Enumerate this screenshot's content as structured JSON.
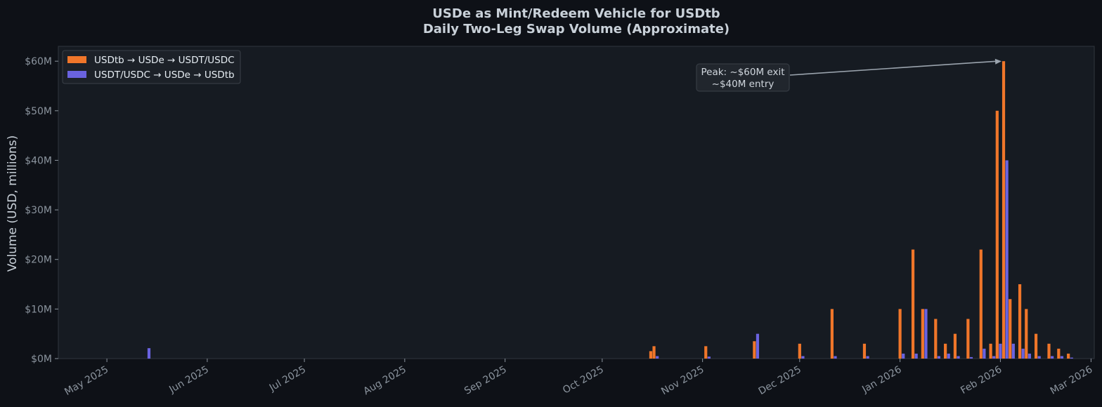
{
  "chart_data": {
    "type": "bar",
    "title": "USDe as Mint/Redeem Vehicle for USDtb",
    "subtitle": "Daily Two-Leg Swap Volume (Approximate)",
    "ylabel": "Volume (USD, millions)",
    "xlabel": "",
    "ylim": [
      0,
      63
    ],
    "xlim": [
      "2025-04-16",
      "2026-03-02"
    ],
    "yticks": [
      0,
      10,
      20,
      30,
      40,
      50,
      60
    ],
    "ytick_labels": [
      "$0M",
      "$10M",
      "$20M",
      "$30M",
      "$40M",
      "$50M",
      "$60M"
    ],
    "xticks": [
      {
        "date": "2025-05-01",
        "label": "May 2025"
      },
      {
        "date": "2025-06-01",
        "label": "Jun 2025"
      },
      {
        "date": "2025-07-01",
        "label": "Jul 2025"
      },
      {
        "date": "2025-08-01",
        "label": "Aug 2025"
      },
      {
        "date": "2025-09-01",
        "label": "Sep 2025"
      },
      {
        "date": "2025-10-01",
        "label": "Oct 2025"
      },
      {
        "date": "2025-11-01",
        "label": "Nov 2025"
      },
      {
        "date": "2025-12-01",
        "label": "Dec 2025"
      },
      {
        "date": "2026-01-01",
        "label": "Jan 2026"
      },
      {
        "date": "2026-02-01",
        "label": "Feb 2026"
      },
      {
        "date": "2026-03-01",
        "label": "Mar 2026"
      }
    ],
    "legend_position": "top-left",
    "grid": false,
    "series": [
      {
        "name": "USDtb → USDe → USDT/USDC",
        "color": "#f0762a",
        "points": [
          [
            "2025-10-16",
            1.5
          ],
          [
            "2025-10-17",
            2.5
          ],
          [
            "2025-11-02",
            2.5
          ],
          [
            "2025-11-17",
            3.5
          ],
          [
            "2025-12-01",
            3.0
          ],
          [
            "2025-12-11",
            10.0
          ],
          [
            "2025-12-21",
            3.0
          ],
          [
            "2026-01-01",
            10.0
          ],
          [
            "2026-01-05",
            22.0
          ],
          [
            "2026-01-08",
            10.0
          ],
          [
            "2026-01-12",
            8.0
          ],
          [
            "2026-01-15",
            3.0
          ],
          [
            "2026-01-18",
            5.0
          ],
          [
            "2026-01-22",
            8.0
          ],
          [
            "2026-01-26",
            22.0
          ],
          [
            "2026-01-29",
            3.0
          ],
          [
            "2026-01-31",
            50.0
          ],
          [
            "2026-02-02",
            60.0
          ],
          [
            "2026-02-04",
            12.0
          ],
          [
            "2026-02-07",
            15.0
          ],
          [
            "2026-02-09",
            10.0
          ],
          [
            "2026-02-12",
            5.0
          ],
          [
            "2026-02-16",
            3.0
          ],
          [
            "2026-02-19",
            2.0
          ],
          [
            "2026-02-22",
            1.0
          ]
        ]
      },
      {
        "name": "USDT/USDC → USDe → USDtb",
        "color": "#6a63e0",
        "points": [
          [
            "2025-05-14",
            2.1
          ],
          [
            "2025-10-18",
            0.5
          ],
          [
            "2025-11-03",
            0.4
          ],
          [
            "2025-11-18",
            5.0
          ],
          [
            "2025-12-02",
            0.5
          ],
          [
            "2025-12-12",
            0.5
          ],
          [
            "2025-12-22",
            0.5
          ],
          [
            "2026-01-02",
            1.0
          ],
          [
            "2026-01-06",
            1.0
          ],
          [
            "2026-01-09",
            10.0
          ],
          [
            "2026-01-13",
            0.5
          ],
          [
            "2026-01-16",
            1.0
          ],
          [
            "2026-01-19",
            0.5
          ],
          [
            "2026-01-23",
            0.3
          ],
          [
            "2026-01-27",
            2.0
          ],
          [
            "2026-01-30",
            0.5
          ],
          [
            "2026-02-01",
            3.0
          ],
          [
            "2026-02-03",
            40.0
          ],
          [
            "2026-02-05",
            3.0
          ],
          [
            "2026-02-08",
            2.0
          ],
          [
            "2026-02-10",
            1.0
          ],
          [
            "2026-02-13",
            0.5
          ],
          [
            "2026-02-17",
            0.5
          ],
          [
            "2026-02-20",
            0.5
          ],
          [
            "2026-02-23",
            0.2
          ]
        ]
      }
    ],
    "annotation": {
      "text_line1": "Peak: ~$60M exit",
      "text_line2": "~$40M entry",
      "target_date": "2026-02-02",
      "target_value": 60
    }
  }
}
